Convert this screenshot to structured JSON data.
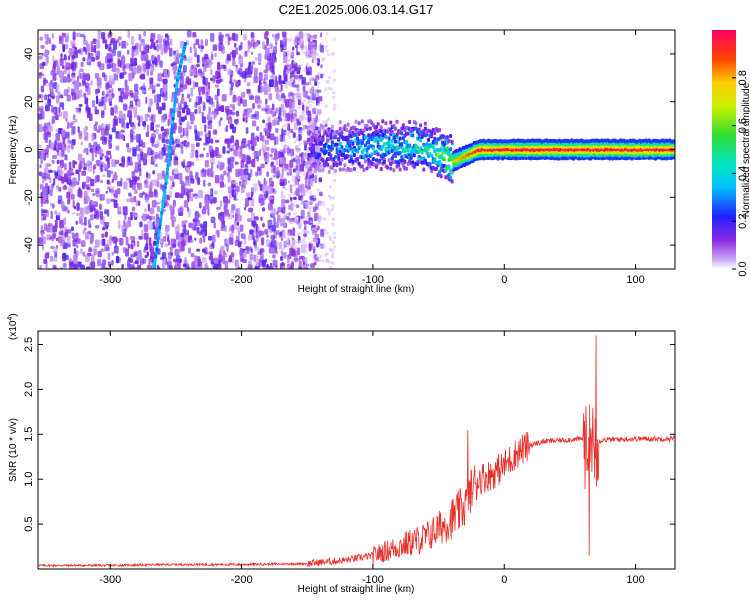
{
  "figure": {
    "title": "C2E1.2025.006.03.14.G17"
  },
  "chart_data": [
    {
      "type": "heatmap",
      "xlabel": "Height of straight line (km)",
      "ylabel": "Frequency (Hz)",
      "xlim": [
        -355,
        130
      ],
      "ylim": [
        -50,
        50
      ],
      "xticks": [
        -300,
        -200,
        -100,
        0,
        100
      ],
      "yticks": [
        -40,
        -20,
        0,
        20,
        40
      ],
      "colorbar": {
        "label": "Normalized spectral amplitude",
        "range": [
          0,
          1
        ],
        "ticks": [
          0.0,
          0.2,
          0.4,
          0.6,
          0.8
        ],
        "colormap": "rainbow-violet-to-red"
      },
      "ridge": {
        "x": [
          -355,
          -150,
          -130,
          -100,
          -60,
          -40,
          -20,
          0,
          20,
          60,
          100,
          130
        ],
        "y": [
          0,
          0,
          1,
          2,
          1,
          -5,
          0,
          0,
          0,
          0,
          0,
          0
        ],
        "amplitude": [
          0.1,
          0.2,
          0.35,
          0.45,
          0.55,
          0.75,
          0.95,
          0.95,
          0.95,
          0.95,
          0.95,
          0.95
        ]
      },
      "trace": {
        "x": [
          -268,
          -258,
          -250,
          -244
        ],
        "y": [
          -50,
          -10,
          30,
          45
        ]
      },
      "grid": false
    },
    {
      "type": "line",
      "xlabel": "Height of straight line (km)",
      "ylabel": "SNR (10 * v/v)",
      "yscale_note": "(x10",
      "yscale_exponent": "4",
      "yscale_suffix": ")",
      "xlim": [
        -355,
        130
      ],
      "ylim": [
        0,
        2.65
      ],
      "xticks": [
        -300,
        -200,
        -100,
        0,
        100
      ],
      "yticks": [
        0.5,
        1.0,
        1.5,
        2.0,
        2.5
      ],
      "color": "#e8302c",
      "series": [
        {
          "x": [
            -355,
            -300,
            -250,
            -200,
            -150,
            -120,
            -100,
            -80,
            -60,
            -40,
            -30,
            -25,
            -20,
            -10,
            0,
            10,
            20,
            30,
            40,
            50,
            60,
            63,
            66,
            70,
            75,
            80,
            100,
            130
          ],
          "y": [
            0.04,
            0.04,
            0.05,
            0.05,
            0.06,
            0.1,
            0.15,
            0.25,
            0.35,
            0.55,
            0.7,
            0.9,
            1.0,
            1.05,
            1.15,
            1.3,
            1.38,
            1.42,
            1.43,
            1.44,
            1.45,
            1.3,
            1.55,
            1.4,
            1.44,
            1.44,
            1.45,
            1.45
          ]
        }
      ],
      "grid": false
    }
  ]
}
